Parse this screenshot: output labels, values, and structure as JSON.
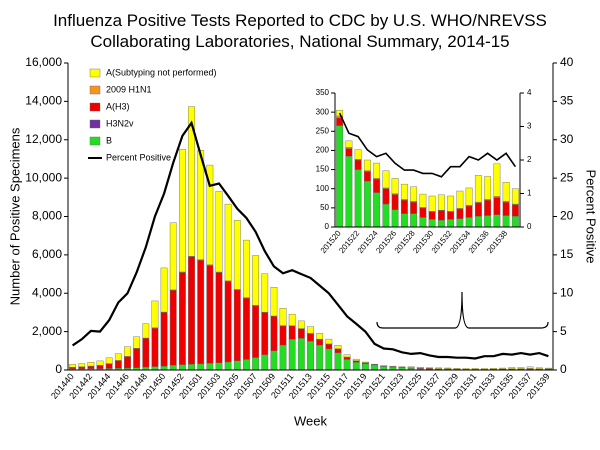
{
  "chart_data": [
    {
      "type": "bar",
      "stacked": true,
      "title": "Influenza Positive Tests Reported to CDC by U.S. WHO/NREVSS Collaborating Laboratories, National Summary, 2014-15",
      "y_label": "Number of Positive Specimens",
      "y2_label": "Percent Positive",
      "x_label": "Week",
      "legend": "upper left",
      "categories": [
        "201440",
        null,
        "201442",
        null,
        "201444",
        null,
        "201446",
        null,
        "201448",
        null,
        "201450",
        null,
        "201452",
        null,
        "201501",
        null,
        "201503",
        null,
        "201505",
        null,
        "201507",
        null,
        "201509",
        null,
        "201511",
        null,
        "201513",
        null,
        "201515",
        null,
        "201517",
        null,
        "201519",
        null,
        "201521",
        null,
        "201523",
        null,
        "201525",
        null,
        "201527",
        null,
        "201529",
        null,
        "201531",
        null,
        "201533",
        null,
        "201535",
        null,
        "201537",
        null,
        "201539"
      ],
      "ylim": [
        0,
        16000
      ],
      "yticks": [
        0,
        {
          "value": 2000,
          "label": "2,000"
        },
        {
          "value": 4000,
          "label": "4,000"
        },
        {
          "value": 6000,
          "label": "6,000"
        },
        {
          "value": 8000,
          "label": "8,000"
        },
        {
          "value": 10000,
          "label": "10,000"
        },
        {
          "value": 12000,
          "label": "12,000"
        },
        {
          "value": 14000,
          "label": "14,000"
        },
        {
          "value": 16000,
          "label": "16,000"
        }
      ],
      "y2lim": [
        0,
        40
      ],
      "y2ticks": [
        0,
        5,
        10,
        15,
        20,
        25,
        30,
        35,
        40
      ],
      "series": [
        {
          "name": "B",
          "color": "#22dd22",
          "values": [
            60,
            60,
            70,
            70,
            80,
            90,
            100,
            120,
            150,
            180,
            200,
            250,
            280,
            300,
            320,
            350,
            380,
            420,
            480,
            550,
            650,
            800,
            1000,
            1300,
            1600,
            1650,
            1500,
            1300,
            1100,
            900,
            550,
            400,
            320,
            265,
            185,
            150,
            120,
            90,
            60,
            45,
            35,
            35,
            25,
            20,
            18,
            20,
            22,
            25,
            28,
            30,
            32,
            30,
            28
          ]
        },
        {
          "name": "H3N2v",
          "color": "#7030a0",
          "values": [
            0,
            0,
            0,
            0,
            0,
            0,
            0,
            0,
            0,
            0,
            0,
            0,
            0,
            0,
            0,
            0,
            0,
            0,
            0,
            0,
            0,
            0,
            0,
            0,
            0,
            0,
            0,
            0,
            0,
            0,
            0,
            0,
            0,
            0,
            0,
            0,
            0,
            0,
            0,
            0,
            0,
            0,
            0,
            0,
            0,
            0,
            0,
            0,
            0,
            0,
            0,
            0,
            0
          ]
        },
        {
          "name": "A(H3)",
          "color": "#ee0000",
          "values": [
            80,
            100,
            130,
            170,
            250,
            400,
            600,
            1000,
            1500,
            2000,
            2800,
            3900,
            4800,
            5600,
            5400,
            5100,
            4700,
            4200,
            3700,
            3200,
            2700,
            2200,
            1800,
            1000,
            700,
            500,
            400,
            300,
            250,
            200,
            120,
            80,
            50,
            20,
            20,
            25,
            25,
            35,
            40,
            40,
            35,
            30,
            25,
            20,
            25,
            20,
            25,
            30,
            35,
            40,
            45,
            35,
            30
          ]
        },
        {
          "name": "2009 H1N1",
          "color": "#f7941d",
          "values": [
            5,
            5,
            5,
            5,
            5,
            10,
            10,
            10,
            15,
            20,
            20,
            25,
            30,
            30,
            30,
            30,
            25,
            25,
            20,
            20,
            20,
            15,
            15,
            15,
            10,
            10,
            10,
            10,
            10,
            8,
            8,
            6,
            5,
            5,
            3,
            2,
            2,
            2,
            2,
            2,
            2,
            2,
            1,
            1,
            1,
            1,
            2,
            2,
            2,
            2,
            3,
            2,
            2
          ]
        },
        {
          "name": "A(Subtyping not performed)",
          "color": "#ffff00",
          "values": [
            150,
            170,
            200,
            230,
            300,
            350,
            500,
            600,
            750,
            1400,
            2300,
            3500,
            6400,
            7800,
            5700,
            5200,
            4200,
            4000,
            3600,
            3000,
            2600,
            2000,
            1500,
            900,
            600,
            400,
            350,
            300,
            250,
            180,
            120,
            80,
            40,
            15,
            17,
            25,
            28,
            40,
            45,
            40,
            40,
            38,
            35,
            40,
            40,
            40,
            45,
            45,
            70,
            60,
            85,
            50,
            40
          ]
        },
        {
          "name": "Percent Positive",
          "type": "line",
          "axis": "y2",
          "color": "#000000",
          "values": [
            3.2,
            4.0,
            5.1,
            5.0,
            6.5,
            8.8,
            10.0,
            12.7,
            16.0,
            20.0,
            23.0,
            27.0,
            30.5,
            32.2,
            28.0,
            24.0,
            24.3,
            22.7,
            21.0,
            19.8,
            18.0,
            15.5,
            13.5,
            12.6,
            13.0,
            12.5,
            12.0,
            11.0,
            10.0,
            8.5,
            7.0,
            6.0,
            5.0,
            3.4,
            2.8,
            2.7,
            2.3,
            2.1,
            2.2,
            1.9,
            1.7,
            1.7,
            1.6,
            1.6,
            1.5,
            1.8,
            1.8,
            2.1,
            2.0,
            2.2,
            2.0,
            2.2,
            1.8
          ]
        }
      ]
    },
    {
      "type": "bar",
      "stacked": true,
      "categories": [
        "201520",
        null,
        "201522",
        null,
        "201524",
        null,
        "201526",
        null,
        "201528",
        null,
        "201530",
        null,
        "201532",
        null,
        "201534",
        null,
        "201536",
        null,
        "201538",
        null
      ],
      "ylim": [
        0,
        350
      ],
      "yticks": [
        0,
        50,
        100,
        150,
        200,
        250,
        300,
        350
      ],
      "y2lim": [
        0,
        4
      ],
      "y2ticks": [
        0,
        1,
        2,
        3,
        4
      ],
      "series": [
        {
          "name": "B",
          "color": "#22dd22",
          "values": [
            265,
            185,
            150,
            120,
            90,
            60,
            45,
            35,
            35,
            25,
            20,
            18,
            20,
            22,
            25,
            28,
            30,
            32,
            30,
            28
          ]
        },
        {
          "name": "H3N2v",
          "color": "#7030a0",
          "values": [
            0,
            0,
            0,
            0,
            0,
            0,
            0,
            0,
            0,
            0,
            0,
            0,
            0,
            0,
            0,
            0,
            0,
            0,
            0,
            0
          ]
        },
        {
          "name": "A(H3)",
          "color": "#ee0000",
          "values": [
            20,
            20,
            25,
            25,
            35,
            40,
            40,
            35,
            30,
            25,
            20,
            25,
            20,
            25,
            30,
            35,
            40,
            45,
            35,
            30
          ]
        },
        {
          "name": "2009 H1N1",
          "color": "#f7941d",
          "values": [
            5,
            3,
            2,
            2,
            2,
            2,
            2,
            2,
            2,
            1,
            1,
            1,
            1,
            2,
            2,
            2,
            2,
            3,
            2,
            2
          ]
        },
        {
          "name": "A(Subtyping not performed)",
          "color": "#ffff00",
          "values": [
            15,
            17,
            25,
            28,
            40,
            45,
            40,
            40,
            38,
            35,
            40,
            40,
            40,
            45,
            45,
            70,
            60,
            85,
            50,
            40
          ]
        },
        {
          "name": "Percent Positive",
          "type": "line",
          "axis": "y2",
          "color": "#000000",
          "values": [
            3.4,
            2.8,
            2.7,
            2.3,
            2.1,
            2.2,
            1.9,
            1.7,
            1.7,
            1.6,
            1.6,
            1.5,
            1.8,
            1.8,
            2.1,
            2.0,
            2.2,
            2.0,
            2.2,
            1.8
          ]
        }
      ]
    }
  ]
}
